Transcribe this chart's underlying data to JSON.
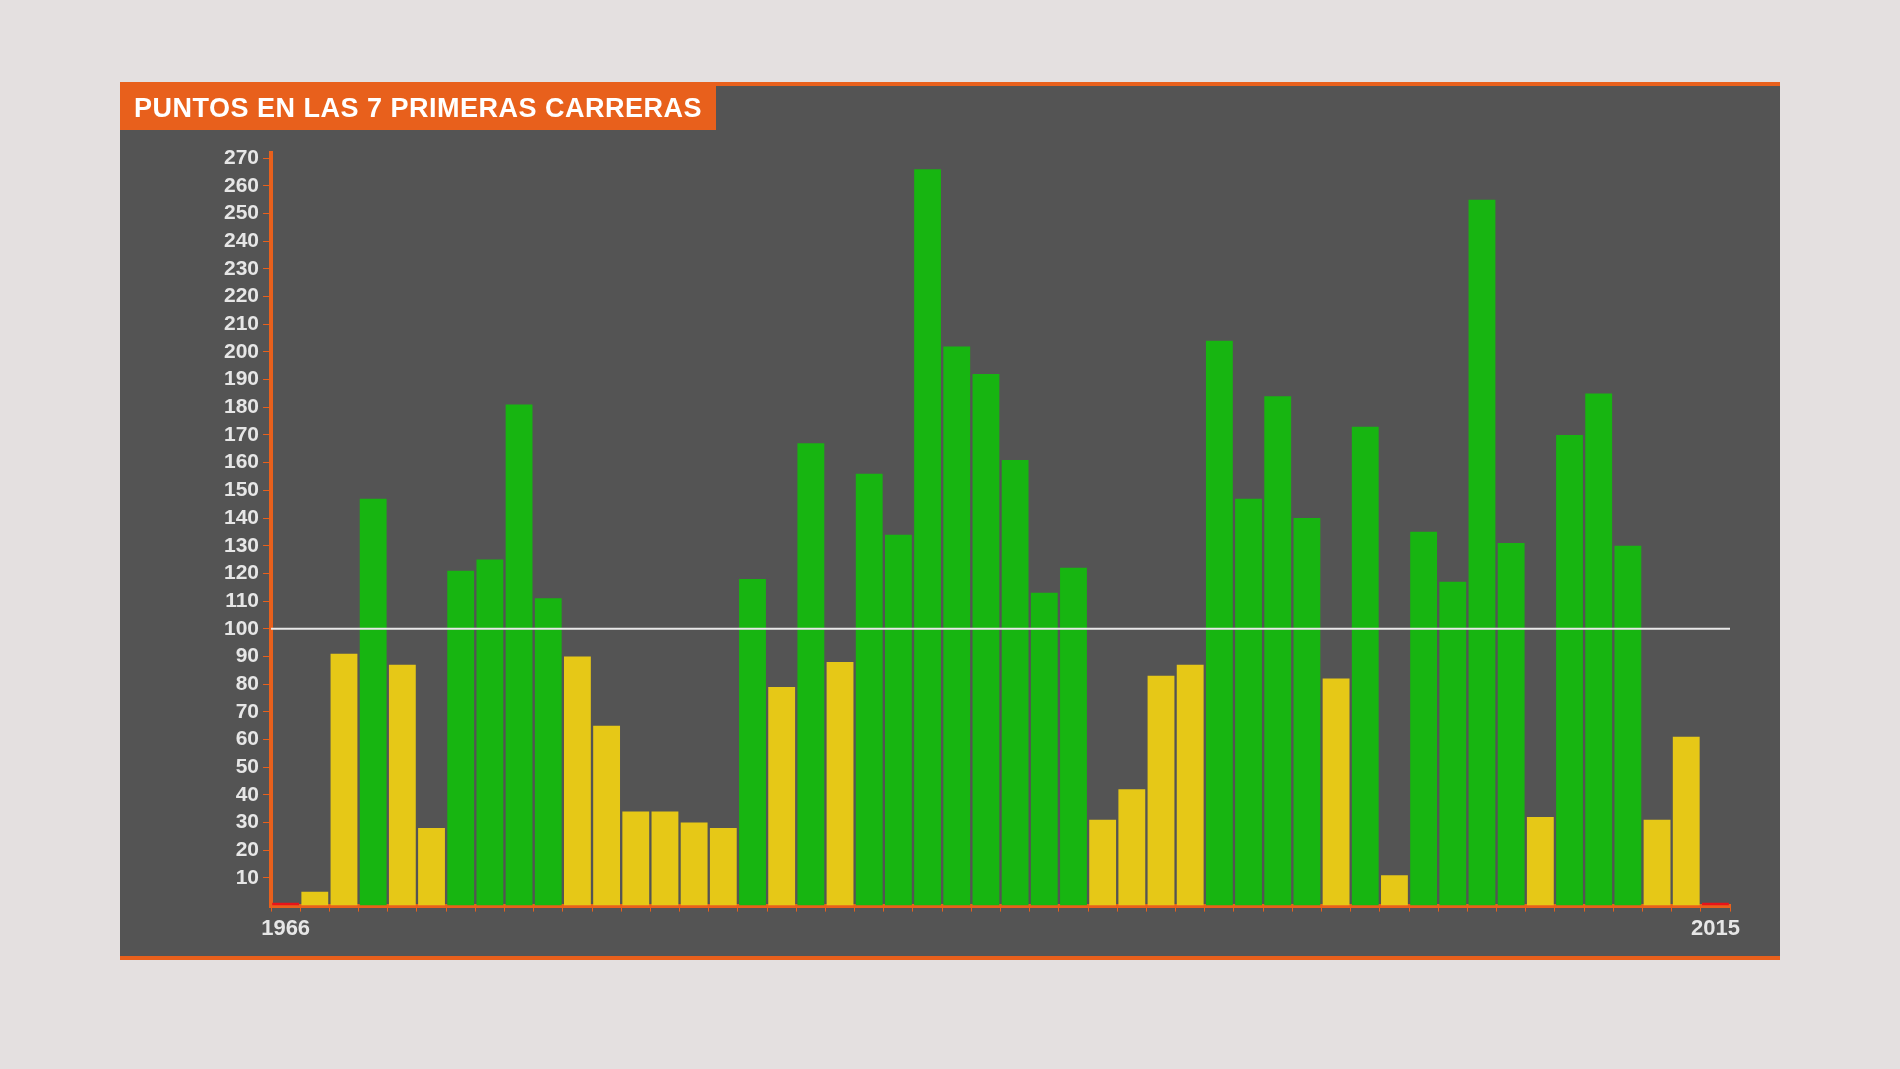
{
  "chart_data": {
    "type": "bar",
    "title": "PUNTOS EN LAS 7 PRIMERAS CARRERAS",
    "categories": [
      "1966",
      null,
      null,
      null,
      null,
      null,
      null,
      null,
      null,
      null,
      null,
      null,
      null,
      null,
      null,
      null,
      null,
      null,
      null,
      null,
      null,
      null,
      null,
      null,
      null,
      null,
      null,
      null,
      null,
      null,
      null,
      null,
      null,
      null,
      null,
      null,
      null,
      null,
      null,
      null,
      null,
      null,
      null,
      null,
      null,
      null,
      null,
      null,
      null,
      "2015"
    ],
    "values": [
      1,
      5,
      91,
      147,
      87,
      28,
      121,
      125,
      181,
      111,
      90,
      65,
      34,
      34,
      30,
      28,
      118,
      79,
      167,
      88,
      156,
      134,
      266,
      202,
      192,
      161,
      113,
      122,
      31,
      42,
      83,
      87,
      204,
      147,
      184,
      140,
      82,
      173,
      11,
      135,
      117,
      255,
      131,
      32,
      170,
      185,
      130,
      31,
      61,
      1
    ],
    "colors": [
      "#e8141a",
      "#e6c817",
      "#e6c817",
      "#17b511",
      "#e6c817",
      "#e6c817",
      "#17b511",
      "#17b511",
      "#17b511",
      "#17b511",
      "#e6c817",
      "#e6c817",
      "#e6c817",
      "#e6c817",
      "#e6c817",
      "#e6c817",
      "#17b511",
      "#e6c817",
      "#17b511",
      "#e6c817",
      "#17b511",
      "#17b511",
      "#17b511",
      "#17b511",
      "#17b511",
      "#17b511",
      "#17b511",
      "#17b511",
      "#e6c817",
      "#e6c817",
      "#e6c817",
      "#e6c817",
      "#17b511",
      "#17b511",
      "#17b511",
      "#17b511",
      "#e6c817",
      "#17b511",
      "#e6c817",
      "#17b511",
      "#17b511",
      "#17b511",
      "#17b511",
      "#e6c817",
      "#17b511",
      "#17b511",
      "#17b511",
      "#e6c817",
      "#e6c817",
      "#e8141a"
    ],
    "ylim": [
      0,
      272
    ],
    "yticks": [
      10,
      20,
      30,
      40,
      50,
      60,
      70,
      80,
      90,
      100,
      110,
      120,
      130,
      140,
      150,
      160,
      170,
      180,
      190,
      200,
      210,
      220,
      230,
      240,
      250,
      260,
      270
    ],
    "ref_lines": [
      {
        "axis": "y",
        "value": 100,
        "color": "#e8e8e8"
      }
    ],
    "grid": false,
    "legend": false
  }
}
